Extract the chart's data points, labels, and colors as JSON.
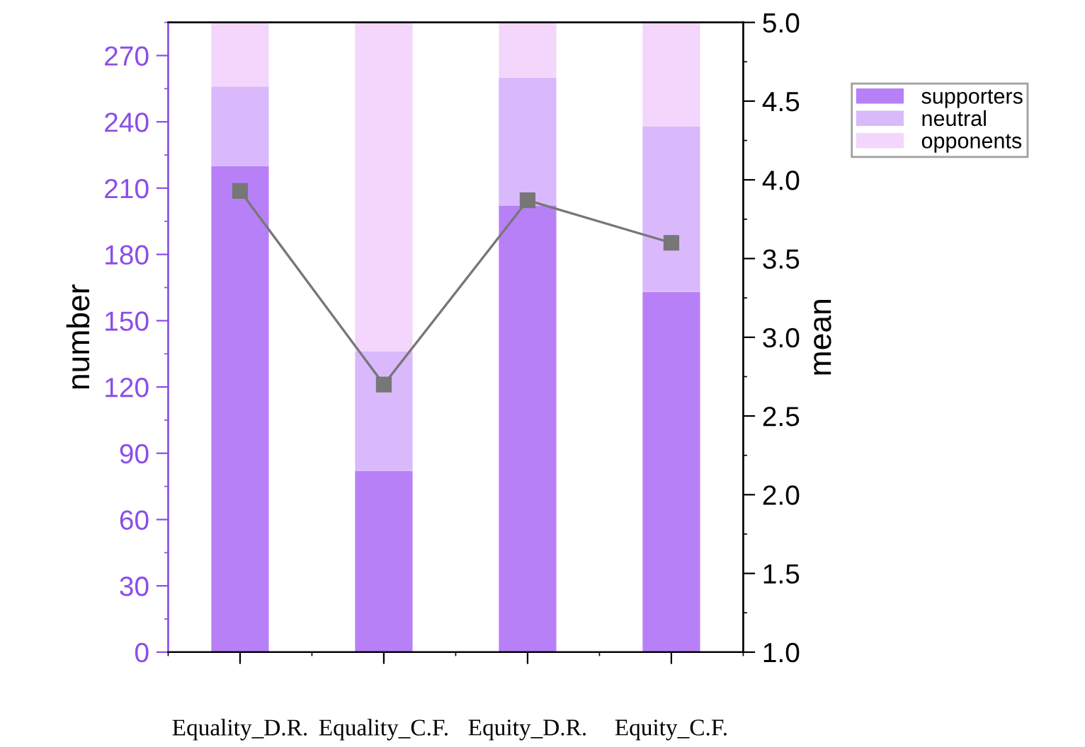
{
  "chart_data": {
    "type": "bar",
    "stacked": true,
    "categories": [
      "Equality_D.R.",
      "Equality_C.F.",
      "Equity_D.R.",
      "Equity_C.F."
    ],
    "series": [
      {
        "name": "supporters",
        "color": "#b880f7",
        "values": [
          220,
          82,
          202,
          163
        ]
      },
      {
        "name": "neutral",
        "color": "#d9b9fb",
        "values": [
          36,
          54,
          58,
          75
        ]
      },
      {
        "name": "opponents",
        "color": "#f4d5fc",
        "values": [
          29,
          149,
          25,
          47
        ]
      },
      {
        "type": "line",
        "axis": "y2",
        "color": "#777777",
        "marker": "square",
        "values": [
          3.93,
          2.7,
          3.87,
          3.6
        ]
      }
    ],
    "ylabel": "number",
    "y2label": "mean",
    "ylim": [
      0,
      285
    ],
    "yticks": [
      0,
      30,
      60,
      90,
      120,
      150,
      180,
      210,
      240,
      270
    ],
    "y2lim": [
      1.0,
      5.0
    ],
    "y2ticks": [
      {
        "value": 1.0,
        "label": "1.0"
      },
      {
        "value": 1.5,
        "label": "1.5"
      },
      {
        "value": 2.0,
        "label": "2.0"
      },
      {
        "value": 2.5,
        "label": "2.5"
      },
      {
        "value": 3.0,
        "label": "3.0"
      },
      {
        "value": 3.5,
        "label": "3.5"
      },
      {
        "value": 4.0,
        "label": "4.0"
      },
      {
        "value": 4.5,
        "label": "4.5"
      },
      {
        "value": 5.0,
        "label": "5.0"
      }
    ],
    "legend": "top right",
    "grid": false
  }
}
